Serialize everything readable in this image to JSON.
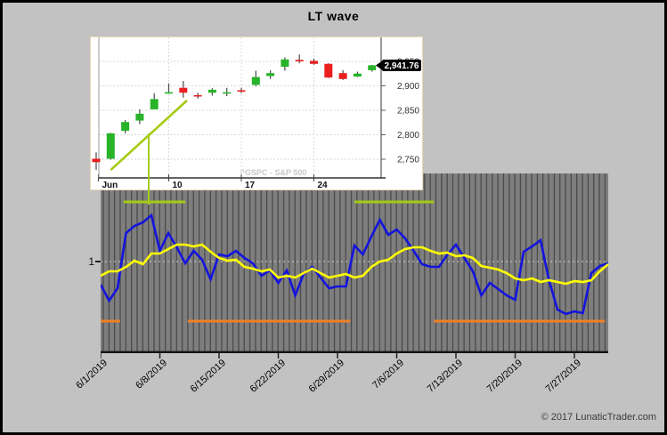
{
  "window": {
    "title": "LT wave",
    "copyright": "© 2017 LunaticTrader.com"
  },
  "colors": {
    "background": "#c2c2c2",
    "plot_bg": "#7e7e7e",
    "stripe": "#4b4b4b",
    "ref_gridline": "#cccccc",
    "axis": "#141414",
    "blue_line": "#1414dd",
    "yellow_line": "#ffff00",
    "chartreuse": "#a4cb12",
    "orange": "#ef8122",
    "candle_up": "#28b428",
    "candle_down": "#ea1f1f",
    "tag_bg": "#000000",
    "tag_text": "#ffffff",
    "watermark_text": "#c9c9c9"
  },
  "chart_data": [
    {
      "id": "lt-wave-main",
      "type": "line",
      "title": "LT wave",
      "x_start_date": "6/1/2019",
      "x_step_days": 1,
      "x_tick_labels": [
        "6/1/2019",
        "6/8/2019",
        "6/15/2019",
        "6/22/2019",
        "6/29/2019",
        "7/6/2019",
        "7/13/2019",
        "7/20/2019",
        "7/27/2019"
      ],
      "y_axis_label": "1",
      "y_ref_value": 1,
      "grid": "vertical-stripes",
      "legend": "none",
      "series": [
        {
          "id": "blue-line",
          "color": "#1414dd",
          "values": [
            0.87,
            0.78,
            0.85,
            1.16,
            1.2,
            1.22,
            1.26,
            1.06,
            1.16,
            1.08,
            0.99,
            1.06,
            1.01,
            0.9,
            1.04,
            1.03,
            1.06,
            1.02,
            0.99,
            0.92,
            0.95,
            0.88,
            0.95,
            0.81,
            0.93,
            0.97,
            0.91,
            0.85,
            0.86,
            0.86,
            1.09,
            1.04,
            1.14,
            1.235,
            1.15,
            1.18,
            1.13,
            1.06,
            0.985,
            0.97,
            0.97,
            1.04,
            1.095,
            1.02,
            0.945,
            0.81,
            0.88,
            0.845,
            0.81,
            0.785,
            1.055,
            1.085,
            1.12,
            0.895,
            0.73,
            0.705,
            0.72,
            0.71,
            0.935,
            0.975,
            0.99
          ]
        },
        {
          "id": "yellow-line",
          "color": "#ffff00",
          "values": [
            0.92,
            0.945,
            0.945,
            0.97,
            1.005,
            0.985,
            1.045,
            1.045,
            1.07,
            1.095,
            1.095,
            1.085,
            1.095,
            1.055,
            1.02,
            1.005,
            1.01,
            0.97,
            0.96,
            0.945,
            0.955,
            0.91,
            0.92,
            0.91,
            0.935,
            0.96,
            0.935,
            0.91,
            0.92,
            0.93,
            0.91,
            0.92,
            0.97,
            1.0,
            1.01,
            1.045,
            1.07,
            1.08,
            1.08,
            1.06,
            1.045,
            1.05,
            1.03,
            1.035,
            1.02,
            0.975,
            0.965,
            0.955,
            0.935,
            0.905,
            0.895,
            0.905,
            0.885,
            0.895,
            0.885,
            0.875,
            0.89,
            0.885,
            0.895,
            0.945,
            0.985
          ]
        }
      ],
      "bands": [
        {
          "id": "green-band-1",
          "color": "#a4cb12",
          "start_day": 2.7,
          "end_day": 10,
          "value": 1.335
        },
        {
          "id": "green-band-2",
          "color": "#a4cb12",
          "start_day": 30,
          "end_day": 39.4,
          "value": 1.335
        },
        {
          "id": "orange-band-1",
          "color": "#ef8122",
          "start_day": 0,
          "end_day": 2.3,
          "value": 0.665
        },
        {
          "id": "orange-band-2",
          "color": "#ef8122",
          "start_day": 10.3,
          "end_day": 29.5,
          "value": 0.665
        },
        {
          "id": "orange-band-3",
          "color": "#ef8122",
          "start_day": 39.4,
          "end_day": 59.6,
          "value": 0.665
        }
      ]
    },
    {
      "id": "sp500-inset",
      "type": "candlestick",
      "watermark": "^GSPC - S&P 500",
      "last_price_label": "2,941.76",
      "last_price_value": 2941.76,
      "y_ticks": [
        {
          "value": 2950,
          "label": "2,950"
        },
        {
          "value": 2900,
          "label": "2,900"
        },
        {
          "value": 2850,
          "label": "2,850"
        },
        {
          "value": 2800,
          "label": "2,800"
        },
        {
          "value": 2750,
          "label": "2,750"
        }
      ],
      "x_ticks": [
        {
          "candle_index": 0.15,
          "label": "Jun"
        },
        {
          "candle_index": 5,
          "label": "10"
        },
        {
          "candle_index": 10,
          "label": "17"
        },
        {
          "candle_index": 15,
          "label": "24"
        }
      ],
      "candles": [
        {
          "date": "Jun 3",
          "open": 2751,
          "high": 2764,
          "low": 2728,
          "close": 2744,
          "color": "red"
        },
        {
          "date": "Jun 4",
          "open": 2751,
          "high": 2804,
          "low": 2749,
          "close": 2803,
          "color": "green"
        },
        {
          "date": "Jun 5",
          "open": 2808,
          "high": 2830,
          "low": 2803,
          "close": 2826,
          "color": "green"
        },
        {
          "date": "Jun 6",
          "open": 2829,
          "high": 2852,
          "low": 2822,
          "close": 2843,
          "color": "green"
        },
        {
          "date": "Jun 7",
          "open": 2852,
          "high": 2885,
          "low": 2852,
          "close": 2873,
          "color": "green"
        },
        {
          "date": "Jun 10",
          "open": 2886,
          "high": 2905,
          "low": 2885,
          "close": 2887,
          "color": "green"
        },
        {
          "date": "Jun 11",
          "open": 2896,
          "high": 2910,
          "low": 2876,
          "close": 2886,
          "color": "red"
        },
        {
          "date": "Jun 12",
          "open": 2881,
          "high": 2886,
          "low": 2874,
          "close": 2880,
          "color": "red"
        },
        {
          "date": "Jun 13",
          "open": 2886,
          "high": 2895,
          "low": 2880,
          "close": 2892,
          "color": "green"
        },
        {
          "date": "Jun 14",
          "open": 2887,
          "high": 2896,
          "low": 2879,
          "close": 2887,
          "color": "green"
        },
        {
          "date": "Jun 17",
          "open": 2891,
          "high": 2896,
          "low": 2885,
          "close": 2890,
          "color": "red"
        },
        {
          "date": "Jun 18",
          "open": 2902,
          "high": 2931,
          "low": 2899,
          "close": 2918,
          "color": "green"
        },
        {
          "date": "Jun 19",
          "open": 2920,
          "high": 2932,
          "low": 2914,
          "close": 2926,
          "color": "green"
        },
        {
          "date": "Jun 20",
          "open": 2939,
          "high": 2958,
          "low": 2931,
          "close": 2954,
          "color": "green"
        },
        {
          "date": "Jun 21",
          "open": 2953,
          "high": 2964,
          "low": 2946,
          "close": 2950,
          "color": "red"
        },
        {
          "date": "Jun 24",
          "open": 2951,
          "high": 2956,
          "low": 2943,
          "close": 2945,
          "color": "red"
        },
        {
          "date": "Jun 25",
          "open": 2945,
          "high": 2946,
          "low": 2916,
          "close": 2917,
          "color": "red"
        },
        {
          "date": "Jun 26",
          "open": 2926,
          "high": 2932,
          "low": 2912,
          "close": 2914,
          "color": "red"
        },
        {
          "date": "Jun 27",
          "open": 2919,
          "high": 2929,
          "low": 2918,
          "close": 2925,
          "color": "green"
        },
        {
          "date": "Jun 28",
          "open": 2932,
          "high": 2943,
          "low": 2929,
          "close": 2942,
          "color": "green"
        }
      ],
      "trend_line": {
        "from_candle_index": 1.0,
        "from_price": 2728,
        "to_candle_index": 6.25,
        "to_price": 2870,
        "color": "#a4cb12"
      },
      "marker_candle_index": 3.65,
      "marker_color": "#a4cb12"
    }
  ]
}
